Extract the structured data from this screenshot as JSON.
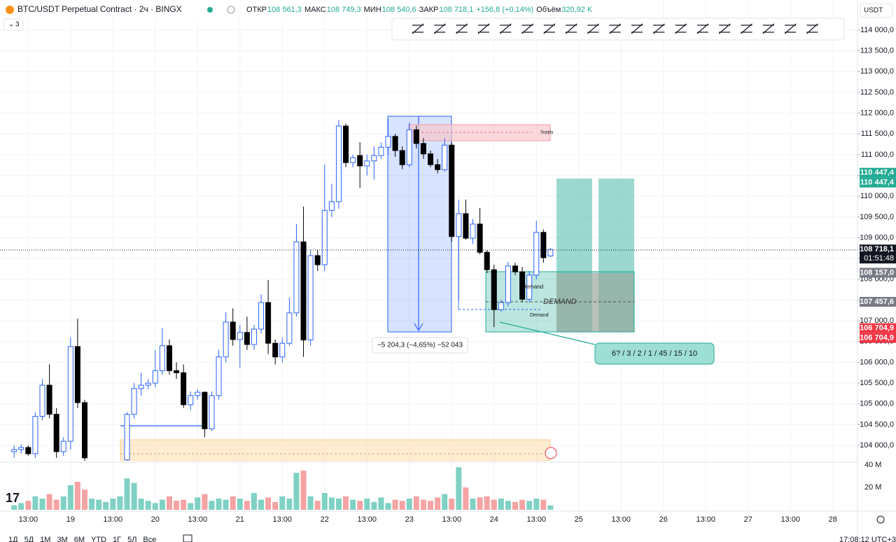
{
  "header": {
    "symbol": "BTC/USDT Perpetual Contract · 2ч · BINGX",
    "fields": [
      {
        "name": "ОТКР",
        "value": "108 561,3"
      },
      {
        "name": "МАКС",
        "value": "108 749,3"
      },
      {
        "name": "МИН",
        "value": "108 540,6"
      },
      {
        "name": "ЗАКР",
        "value": "108 718,1"
      }
    ],
    "change": "+156,8 (+0,14%)",
    "volume_name": "Объём",
    "volume_value": "320,92 K"
  },
  "indicator_count": "3",
  "currency": "USDT",
  "chart_data": {
    "type": "candlestick",
    "up_color": "#2962ff",
    "down_color": "#000000",
    "volume_up_color": "#7fd1c4",
    "volume_down_color": "#f5a3a3",
    "candles": [
      {
        "o": 103850,
        "h": 104000,
        "l": 103700,
        "c": 103900
      },
      {
        "o": 103900,
        "h": 104030,
        "l": 103800,
        "c": 103950
      },
      {
        "o": 103950,
        "h": 104000,
        "l": 103750,
        "c": 103800
      },
      {
        "o": 103800,
        "h": 104800,
        "l": 103700,
        "c": 104700
      },
      {
        "o": 104700,
        "h": 105600,
        "l": 104600,
        "c": 105450
      },
      {
        "o": 105450,
        "h": 105950,
        "l": 104650,
        "c": 104750
      },
      {
        "o": 104750,
        "h": 104900,
        "l": 103700,
        "c": 103850
      },
      {
        "o": 103850,
        "h": 104200,
        "l": 103750,
        "c": 104100
      },
      {
        "o": 104100,
        "h": 106600,
        "l": 103900,
        "c": 106380
      },
      {
        "o": 106380,
        "h": 107050,
        "l": 104900,
        "c": 105030
      },
      {
        "o": 105030,
        "h": 105100,
        "l": 103600,
        "c": 103700
      },
      null,
      null,
      null,
      null,
      null,
      {
        "o": 103650,
        "h": 104800,
        "l": 103600,
        "c": 104750
      },
      {
        "o": 104750,
        "h": 105500,
        "l": 104650,
        "c": 105370
      },
      {
        "o": 105370,
        "h": 105750,
        "l": 105200,
        "c": 105450
      },
      {
        "o": 105450,
        "h": 105600,
        "l": 105350,
        "c": 105500
      },
      {
        "o": 105500,
        "h": 106300,
        "l": 105400,
        "c": 105800
      },
      {
        "o": 105800,
        "h": 106830,
        "l": 105700,
        "c": 106400
      },
      {
        "o": 106400,
        "h": 106550,
        "l": 105700,
        "c": 105800
      },
      {
        "o": 105800,
        "h": 106000,
        "l": 105600,
        "c": 105750
      },
      {
        "o": 105750,
        "h": 105950,
        "l": 104900,
        "c": 104980
      },
      {
        "o": 104980,
        "h": 105300,
        "l": 104850,
        "c": 105200
      },
      {
        "o": 105200,
        "h": 105350,
        "l": 105100,
        "c": 105280
      },
      {
        "o": 105280,
        "h": 105300,
        "l": 104200,
        "c": 104400
      },
      {
        "o": 104400,
        "h": 105300,
        "l": 104350,
        "c": 105200
      },
      {
        "o": 105200,
        "h": 106300,
        "l": 105100,
        "c": 106130
      },
      {
        "o": 106130,
        "h": 107200,
        "l": 106000,
        "c": 106970
      },
      {
        "o": 106970,
        "h": 107300,
        "l": 106400,
        "c": 106550
      },
      {
        "o": 106550,
        "h": 106900,
        "l": 105870,
        "c": 106720
      },
      {
        "o": 106720,
        "h": 107100,
        "l": 106300,
        "c": 106430
      },
      {
        "o": 106430,
        "h": 106900,
        "l": 106300,
        "c": 106800
      },
      {
        "o": 106800,
        "h": 107640,
        "l": 106700,
        "c": 107440
      },
      {
        "o": 107440,
        "h": 107980,
        "l": 106200,
        "c": 106460
      },
      {
        "o": 106460,
        "h": 106550,
        "l": 105950,
        "c": 106130
      },
      {
        "o": 106130,
        "h": 106600,
        "l": 106000,
        "c": 106460
      },
      {
        "o": 106460,
        "h": 107560,
        "l": 106400,
        "c": 107190
      },
      {
        "o": 107190,
        "h": 109330,
        "l": 107100,
        "c": 108900
      },
      {
        "o": 108900,
        "h": 109750,
        "l": 106130,
        "c": 106540
      },
      {
        "o": 106540,
        "h": 108700,
        "l": 106400,
        "c": 108570
      },
      {
        "o": 108570,
        "h": 108700,
        "l": 108200,
        "c": 108350
      },
      {
        "o": 108350,
        "h": 110760,
        "l": 108200,
        "c": 109660
      },
      {
        "o": 109660,
        "h": 110300,
        "l": 109500,
        "c": 109870
      },
      {
        "o": 109870,
        "h": 111830,
        "l": 109700,
        "c": 111690
      },
      {
        "o": 111690,
        "h": 111750,
        "l": 110700,
        "c": 110810
      },
      {
        "o": 110810,
        "h": 111000,
        "l": 110700,
        "c": 110930
      },
      {
        "o": 110980,
        "h": 111300,
        "l": 110200,
        "c": 110730
      },
      {
        "o": 110730,
        "h": 111000,
        "l": 110500,
        "c": 110850
      },
      {
        "o": 110850,
        "h": 111200,
        "l": 110400,
        "c": 110980
      },
      {
        "o": 110980,
        "h": 111300,
        "l": 110900,
        "c": 111180
      },
      {
        "o": 111180,
        "h": 111860,
        "l": 111000,
        "c": 111440
      },
      {
        "o": 111440,
        "h": 111500,
        "l": 110950,
        "c": 111100
      },
      {
        "o": 111100,
        "h": 111200,
        "l": 110650,
        "c": 110760
      },
      {
        "o": 110760,
        "h": 111770,
        "l": 110700,
        "c": 111600
      },
      {
        "o": 111600,
        "h": 111700,
        "l": 111150,
        "c": 111270
      },
      {
        "o": 111270,
        "h": 111400,
        "l": 110900,
        "c": 111020
      },
      {
        "o": 111020,
        "h": 111100,
        "l": 110700,
        "c": 110760
      },
      {
        "o": 110760,
        "h": 110900,
        "l": 110550,
        "c": 110640
      },
      {
        "o": 110640,
        "h": 111400,
        "l": 110600,
        "c": 111230
      },
      {
        "o": 111230,
        "h": 111300,
        "l": 108900,
        "c": 109030
      },
      {
        "o": 109030,
        "h": 109920,
        "l": 107480,
        "c": 109580
      },
      {
        "o": 109580,
        "h": 109920,
        "l": 108950,
        "c": 108990
      },
      {
        "o": 108990,
        "h": 109450,
        "l": 108850,
        "c": 109330
      },
      {
        "o": 109330,
        "h": 109720,
        "l": 108600,
        "c": 108650
      },
      {
        "o": 108650,
        "h": 108700,
        "l": 108150,
        "c": 108230
      },
      {
        "o": 108230,
        "h": 108350,
        "l": 106850,
        "c": 107270
      },
      {
        "o": 107270,
        "h": 107500,
        "l": 107220,
        "c": 107440
      },
      {
        "o": 107440,
        "h": 108420,
        "l": 107350,
        "c": 108320
      },
      {
        "o": 108320,
        "h": 108400,
        "l": 108100,
        "c": 108180
      },
      {
        "o": 108180,
        "h": 108300,
        "l": 107450,
        "c": 107520
      },
      {
        "o": 107520,
        "h": 108200,
        "l": 107450,
        "c": 108100
      },
      {
        "o": 108100,
        "h": 109410,
        "l": 108000,
        "c": 109130
      },
      {
        "o": 109130,
        "h": 109200,
        "l": 108400,
        "c": 108520
      },
      {
        "o": 108561.3,
        "h": 108749.3,
        "l": 108540.6,
        "c": 108718.1
      }
    ],
    "volume": [
      4,
      6,
      8,
      12,
      10,
      14,
      9,
      12,
      22,
      25,
      18,
      10,
      9,
      7,
      10,
      12,
      28,
      24,
      10,
      8,
      6,
      9,
      12,
      8,
      9,
      6,
      11,
      14,
      8,
      10,
      9,
      12,
      10,
      8,
      15,
      9,
      11,
      7,
      12,
      10,
      33,
      35,
      12,
      8,
      15,
      11,
      10,
      12,
      9,
      8,
      10,
      7,
      11,
      6,
      9,
      8,
      10,
      12,
      9,
      8,
      11,
      14,
      10,
      38,
      20,
      10,
      11,
      12,
      9,
      10,
      8,
      7,
      9,
      8,
      10,
      9,
      4
    ],
    "xlim": [
      -2,
      119.5
    ],
    "xticks": [
      {
        "value": 2,
        "label": "13:00"
      },
      {
        "value": 8,
        "label": "19"
      },
      {
        "value": 14,
        "label": "13:00"
      },
      {
        "value": 20,
        "label": "20"
      },
      {
        "value": 26,
        "label": "13:00"
      },
      {
        "value": 32,
        "label": "21"
      },
      {
        "value": 38,
        "label": "13:00"
      },
      {
        "value": 44,
        "label": "22"
      },
      {
        "value": 50,
        "label": "13:00"
      },
      {
        "value": 56,
        "label": "23"
      },
      {
        "value": 62,
        "label": "13:00"
      },
      {
        "value": 68,
        "label": "24"
      },
      {
        "value": 74,
        "label": "13:00"
      },
      {
        "value": 80,
        "label": "25"
      },
      {
        "value": 86,
        "label": "13:00"
      },
      {
        "value": 92,
        "label": "26"
      },
      {
        "value": 98,
        "label": "13:00"
      },
      {
        "value": 104,
        "label": "27"
      },
      {
        "value": 110,
        "label": "13:00"
      },
      {
        "value": 116,
        "label": "28"
      }
    ],
    "ylim": [
      103630,
      114725
    ],
    "yticks": [
      {
        "value": 104000,
        "label": "104 000,0"
      },
      {
        "value": 104500,
        "label": "104 500,0"
      },
      {
        "value": 105000,
        "label": "105 000,0"
      },
      {
        "value": 105500,
        "label": "105 500,0"
      },
      {
        "value": 106000,
        "label": "106 000,0"
      },
      {
        "value": 106500,
        "label": "106 500,0"
      },
      {
        "value": 107000,
        "label": "107 000,0"
      },
      {
        "value": 107500,
        "label": "107 500,0"
      },
      {
        "value": 108000,
        "label": "108 000,0"
      },
      {
        "value": 108500,
        "label": "108 500,0"
      },
      {
        "value": 109000,
        "label": "109 000,0"
      },
      {
        "value": 109500,
        "label": "109 500,0"
      },
      {
        "value": 110000,
        "label": "110 000,0"
      },
      {
        "value": 110500,
        "label": "110 500,0"
      },
      {
        "value": 111000,
        "label": "111 000,0"
      },
      {
        "value": 111500,
        "label": "111 500,0"
      },
      {
        "value": 112000,
        "label": "112 000,0"
      },
      {
        "value": 112500,
        "label": "112 500,0"
      },
      {
        "value": 113000,
        "label": "113 000,0"
      },
      {
        "value": 113500,
        "label": "113 500,0"
      },
      {
        "value": 114000,
        "label": "114 000,0"
      }
    ],
    "volume_ylim": [
      0,
      42.5
    ],
    "volume_yticks": [
      {
        "value": 20,
        "label": "20 M"
      },
      {
        "value": 40,
        "label": "40 M"
      }
    ],
    "grid": true,
    "price_labels": [
      {
        "value": 110447.4,
        "label": "110 447,4",
        "color": "#22ab94"
      },
      {
        "value": 110447.4,
        "label": "110 447,4",
        "color": "#22ab94"
      },
      {
        "value": 108718.1,
        "label": "108 718,1",
        "color": "#131722"
      },
      {
        "value": 108157.0,
        "label": "108 157,0",
        "color": "#787b86"
      },
      {
        "value": 107457.6,
        "label": "107 457,6",
        "color": "#787b86"
      },
      {
        "value": 106704.9,
        "label": "106 704,9",
        "color": "#f23645"
      },
      {
        "value": 106704.9,
        "label": "106 704,9",
        "color": "#f23645"
      }
    ],
    "countdown": "01:51:48"
  },
  "drawings": {
    "supply": "Supply",
    "demand_small_1": "Demand",
    "demand_small_2": "Demand",
    "demand_big": "DEMAND",
    "measure": "−5 204,3 (−4,65%) −52 043",
    "callout": "6? / 3 / 2 / 1 / 45 / 15 / 10"
  },
  "footer": {
    "periods": [
      "1Д",
      "5Д",
      "1М",
      "3М",
      "6М",
      "YTD",
      "1Г",
      "5Л",
      "Все"
    ],
    "clock": "17:08:12 UTC+3"
  }
}
